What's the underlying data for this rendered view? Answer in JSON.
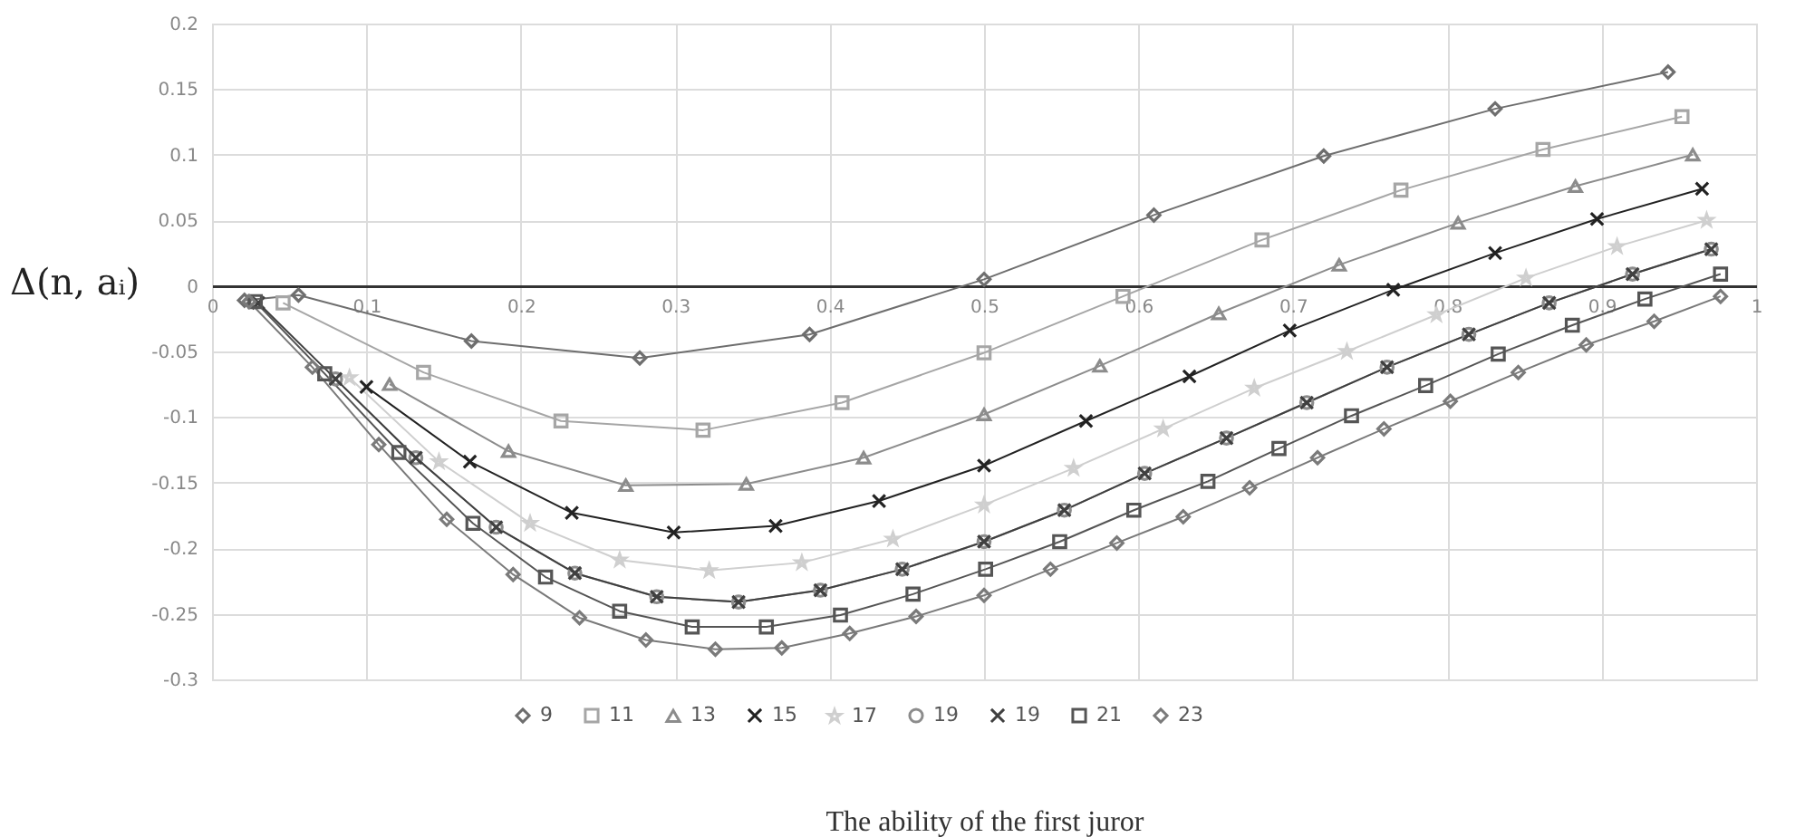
{
  "chart_data": {
    "type": "line",
    "xlabel": "The ability of the first juror",
    "ylabel": "Δ(n, aᵢ)",
    "xlim": [
      0,
      1
    ],
    "xticks": [
      0,
      0.1,
      0.2,
      0.3,
      0.4,
      0.5,
      0.6,
      0.7,
      0.8,
      0.9,
      1
    ],
    "ylim": [
      -0.3,
      0.2
    ],
    "yticks": [
      -0.3,
      -0.25,
      -0.2,
      -0.15,
      -0.1,
      -0.05,
      0,
      0.05,
      0.1,
      0.15,
      0.2
    ],
    "grid": true,
    "legend": "bottom",
    "line_style": "solid",
    "series": [
      {
        "name": "9",
        "color": "#6e6e6e",
        "marker": "diamond",
        "x": [
          0.021,
          0.056,
          0.168,
          0.277,
          0.387,
          0.5,
          0.61,
          0.72,
          0.831,
          0.943
        ],
        "values": [
          -0.011,
          -0.007,
          -0.042,
          -0.055,
          -0.037,
          0.005,
          0.054,
          0.099,
          0.135,
          0.163
        ]
      },
      {
        "name": "11",
        "color": "#a6a6a6",
        "marker": "square",
        "x": [
          0.046,
          0.137,
          0.226,
          0.318,
          0.408,
          0.5,
          0.59,
          0.68,
          0.77,
          0.862,
          0.952
        ],
        "values": [
          -0.013,
          -0.066,
          -0.103,
          -0.11,
          -0.089,
          -0.051,
          -0.008,
          0.035,
          0.073,
          0.104,
          0.129
        ]
      },
      {
        "name": "13",
        "color": "#8c8c8c",
        "marker": "triangle",
        "x": [
          0.115,
          0.192,
          0.268,
          0.346,
          0.422,
          0.5,
          0.575,
          0.652,
          0.73,
          0.807,
          0.883,
          0.959
        ],
        "values": [
          -0.075,
          -0.126,
          -0.152,
          -0.151,
          -0.131,
          -0.098,
          -0.061,
          -0.021,
          0.016,
          0.048,
          0.076,
          0.1
        ]
      },
      {
        "name": "15",
        "color": "#222222",
        "marker": "cross",
        "x": [
          0.1,
          0.167,
          0.233,
          0.299,
          0.365,
          0.432,
          0.5,
          0.566,
          0.633,
          0.698,
          0.765,
          0.831,
          0.897,
          0.965
        ],
        "values": [
          -0.077,
          -0.134,
          -0.173,
          -0.188,
          -0.183,
          -0.164,
          -0.137,
          -0.103,
          -0.069,
          -0.034,
          -0.003,
          0.025,
          0.051,
          0.074
        ]
      },
      {
        "name": "17",
        "color": "#cfcfcf",
        "marker": "star",
        "x": [
          0.089,
          0.147,
          0.206,
          0.264,
          0.322,
          0.382,
          0.441,
          0.5,
          0.558,
          0.616,
          0.675,
          0.735,
          0.793,
          0.851,
          0.91,
          0.968
        ],
        "values": [
          -0.07,
          -0.134,
          -0.181,
          -0.209,
          -0.217,
          -0.211,
          -0.193,
          -0.167,
          -0.139,
          -0.109,
          -0.078,
          -0.05,
          -0.022,
          0.006,
          0.03,
          0.05
        ]
      },
      {
        "name": "19",
        "color": "#8c8c8c",
        "marker": "circle",
        "x": [
          0.08,
          0.132,
          0.184,
          0.235,
          0.288,
          0.341,
          0.394,
          0.447,
          0.5,
          0.552,
          0.604,
          0.657,
          0.709,
          0.761,
          0.814,
          0.866,
          0.92,
          0.971
        ],
        "values": [
          -0.071,
          -0.131,
          -0.184,
          -0.219,
          -0.237,
          -0.241,
          -0.232,
          -0.216,
          -0.195,
          -0.171,
          -0.143,
          -0.116,
          -0.089,
          -0.062,
          -0.037,
          -0.013,
          0.009,
          0.028
        ]
      },
      {
        "name": "19",
        "color": "#404040",
        "marker": "cross",
        "x": [
          0.03,
          0.08,
          0.132,
          0.184,
          0.235,
          0.288,
          0.341,
          0.394,
          0.447,
          0.5,
          0.552,
          0.604,
          0.657,
          0.709,
          0.761,
          0.814,
          0.866,
          0.92,
          0.971
        ],
        "values": [
          -0.013,
          -0.071,
          -0.131,
          -0.184,
          -0.219,
          -0.237,
          -0.241,
          -0.232,
          -0.216,
          -0.195,
          -0.171,
          -0.143,
          -0.116,
          -0.089,
          -0.062,
          -0.037,
          -0.013,
          0.009,
          0.028
        ]
      },
      {
        "name": "21",
        "color": "#555555",
        "marker": "square",
        "x": [
          0.028,
          0.073,
          0.121,
          0.169,
          0.216,
          0.264,
          0.311,
          0.359,
          0.407,
          0.454,
          0.501,
          0.549,
          0.597,
          0.645,
          0.691,
          0.738,
          0.786,
          0.833,
          0.881,
          0.928,
          0.977
        ],
        "values": [
          -0.012,
          -0.067,
          -0.127,
          -0.181,
          -0.222,
          -0.248,
          -0.26,
          -0.26,
          -0.251,
          -0.235,
          -0.216,
          -0.195,
          -0.171,
          -0.149,
          -0.124,
          -0.099,
          -0.076,
          -0.052,
          -0.03,
          -0.01,
          0.009
        ]
      },
      {
        "name": "23",
        "color": "#7a7a7a",
        "marker": "diamond",
        "x": [
          0.024,
          0.065,
          0.108,
          0.152,
          0.195,
          0.238,
          0.281,
          0.326,
          0.369,
          0.413,
          0.456,
          0.5,
          0.543,
          0.586,
          0.629,
          0.672,
          0.716,
          0.759,
          0.802,
          0.846,
          0.89,
          0.934,
          0.977
        ],
        "values": [
          -0.012,
          -0.062,
          -0.121,
          -0.178,
          -0.22,
          -0.253,
          -0.27,
          -0.277,
          -0.276,
          -0.265,
          -0.252,
          -0.236,
          -0.216,
          -0.196,
          -0.176,
          -0.154,
          -0.131,
          -0.109,
          -0.088,
          -0.066,
          -0.045,
          -0.027,
          -0.008
        ]
      }
    ]
  }
}
